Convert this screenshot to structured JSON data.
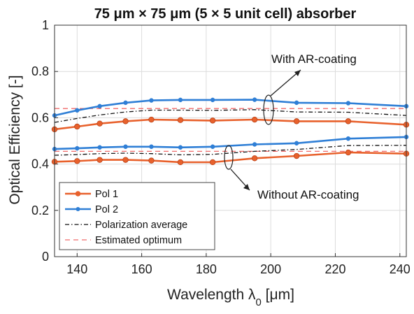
{
  "chart_data": {
    "type": "line",
    "title": "75 μm × 75 μm (5 × 5 unit cell) absorber",
    "xlabel": "Wavelength λ0 [μm]",
    "ylabel": "Optical Efficiency [-]",
    "xlim": [
      133,
      242
    ],
    "ylim": [
      0,
      1
    ],
    "xticks": [
      140,
      160,
      180,
      200,
      220,
      240
    ],
    "yticks": [
      0,
      0.2,
      0.4,
      0.6,
      0.8,
      1
    ],
    "xtick_labels": [
      "140",
      "160",
      "180",
      "200",
      "220",
      "240"
    ],
    "ytick_labels": [
      "0",
      "0.2",
      "0.4",
      "0.6",
      "0.8",
      "1"
    ],
    "grid": true,
    "legend_position": "bottom-left",
    "series": [
      {
        "name": "Pol 1",
        "color": "#e8612c",
        "style": "solid-marker-circle",
        "group": "with_ar",
        "x": [
          133,
          140,
          147,
          155,
          163,
          172,
          182,
          195,
          208,
          224,
          242
        ],
        "y": [
          0.55,
          0.562,
          0.575,
          0.585,
          0.592,
          0.59,
          0.588,
          0.592,
          0.585,
          0.585,
          0.57
        ]
      },
      {
        "name": "Pol 2",
        "color": "#2f7fd6",
        "style": "solid-marker-dot",
        "group": "with_ar",
        "x": [
          133,
          140,
          147,
          155,
          163,
          172,
          182,
          195,
          208,
          224,
          242
        ],
        "y": [
          0.61,
          0.632,
          0.65,
          0.665,
          0.675,
          0.677,
          0.677,
          0.678,
          0.665,
          0.663,
          0.65
        ]
      },
      {
        "name": "Polarization average",
        "color": "#111111",
        "style": "dashdot",
        "group": "with_ar",
        "x": [
          133,
          140,
          147,
          155,
          163,
          172,
          182,
          195,
          208,
          224,
          242
        ],
        "y": [
          0.58,
          0.597,
          0.612,
          0.625,
          0.633,
          0.633,
          0.632,
          0.635,
          0.625,
          0.624,
          0.61
        ]
      },
      {
        "name": "Estimated optimum",
        "color": "#f06a6a",
        "style": "dashed",
        "group": "with_ar",
        "x": [
          133,
          242
        ],
        "y": [
          0.64,
          0.64
        ]
      },
      {
        "name": "Pol 1",
        "color": "#e8612c",
        "style": "solid-marker-circle",
        "group": "without_ar",
        "x": [
          133,
          140,
          147,
          155,
          163,
          172,
          182,
          195,
          208,
          224,
          242
        ],
        "y": [
          0.41,
          0.413,
          0.418,
          0.418,
          0.415,
          0.408,
          0.408,
          0.425,
          0.435,
          0.45,
          0.445
        ]
      },
      {
        "name": "Pol 2",
        "color": "#2f7fd6",
        "style": "solid-marker-dot",
        "group": "without_ar",
        "x": [
          133,
          140,
          147,
          155,
          163,
          172,
          182,
          195,
          208,
          224,
          242
        ],
        "y": [
          0.465,
          0.468,
          0.472,
          0.475,
          0.475,
          0.472,
          0.475,
          0.485,
          0.49,
          0.51,
          0.517
        ]
      },
      {
        "name": "Polarization average",
        "color": "#111111",
        "style": "dashdot",
        "group": "without_ar",
        "x": [
          133,
          140,
          147,
          155,
          163,
          172,
          182,
          195,
          208,
          224,
          242
        ],
        "y": [
          0.438,
          0.441,
          0.445,
          0.447,
          0.445,
          0.44,
          0.442,
          0.455,
          0.463,
          0.48,
          0.481
        ]
      },
      {
        "name": "Estimated optimum",
        "color": "#f06a6a",
        "style": "dashed",
        "group": "without_ar",
        "x": [
          133,
          242
        ],
        "y": [
          0.455,
          0.455
        ]
      }
    ],
    "legend": [
      {
        "label": "Pol 1",
        "color": "#e8612c",
        "style": "solid-marker-circle"
      },
      {
        "label": "Pol 2",
        "color": "#2f7fd6",
        "style": "solid-marker-dot"
      },
      {
        "label": "Polarization average",
        "color": "#111111",
        "style": "dashdot"
      },
      {
        "label": "Estimated optimum",
        "color": "#f06a6a",
        "style": "dashed"
      }
    ],
    "annotations": [
      {
        "text": "With AR-coating",
        "points_to": "upper group of curves"
      },
      {
        "text": "Without AR-coating",
        "points_to": "lower group of curves"
      }
    ]
  }
}
